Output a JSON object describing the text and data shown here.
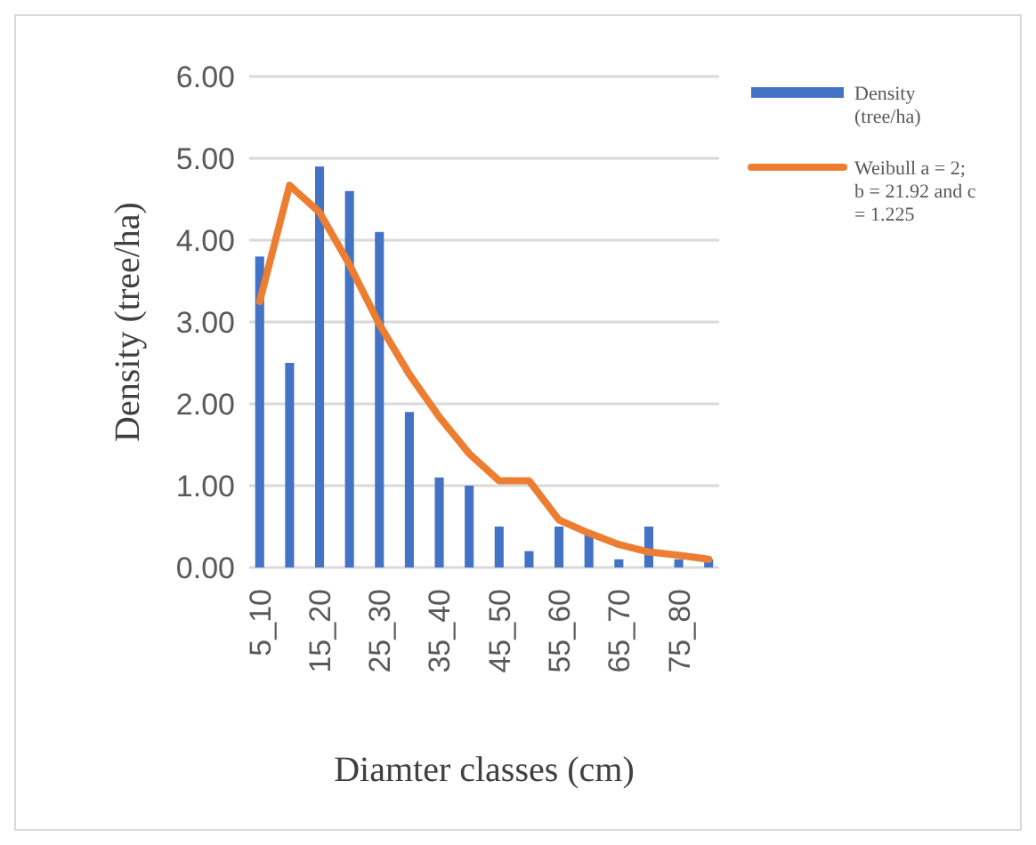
{
  "chart_data": {
    "type": "bar",
    "xlabel": "Diamter classes (cm)",
    "ylabel": "Density (tree/ha)",
    "categories": [
      "5_10",
      null,
      "15_20",
      null,
      "25_30",
      null,
      "35_40",
      null,
      "45_50",
      null,
      "55_60",
      null,
      "65_70",
      null,
      "75_80",
      null
    ],
    "series": [
      {
        "name": "Density (tree/ha)",
        "color": "#4472c4",
        "values": [
          3.8,
          2.5,
          4.9,
          4.6,
          4.1,
          1.9,
          1.1,
          1.0,
          0.5,
          0.2,
          0.5,
          0.4,
          0.1,
          0.5,
          0.1,
          0.1
        ]
      },
      {
        "name": "Weibull a = 2; b = 21.92 and c = 1.225",
        "type": "line",
        "color": "#ed7d31",
        "values": [
          3.25,
          4.67,
          4.34,
          3.7,
          2.97,
          2.36,
          1.84,
          1.39,
          1.06,
          1.06,
          0.58,
          0.42,
          0.28,
          0.19,
          0.15,
          0.1
        ]
      }
    ],
    "ylim": [
      0,
      6
    ],
    "yticks": [
      {
        "value": 0,
        "label": "0.00"
      },
      {
        "value": 1,
        "label": "1.00"
      },
      {
        "value": 2,
        "label": "2.00"
      },
      {
        "value": 3,
        "label": "3.00"
      },
      {
        "value": 4,
        "label": "4.00"
      },
      {
        "value": 5,
        "label": "5.00"
      },
      {
        "value": 6,
        "label": "6.00"
      }
    ],
    "grid": "y",
    "legend": "right",
    "marker": "none",
    "line_style": "solid"
  }
}
